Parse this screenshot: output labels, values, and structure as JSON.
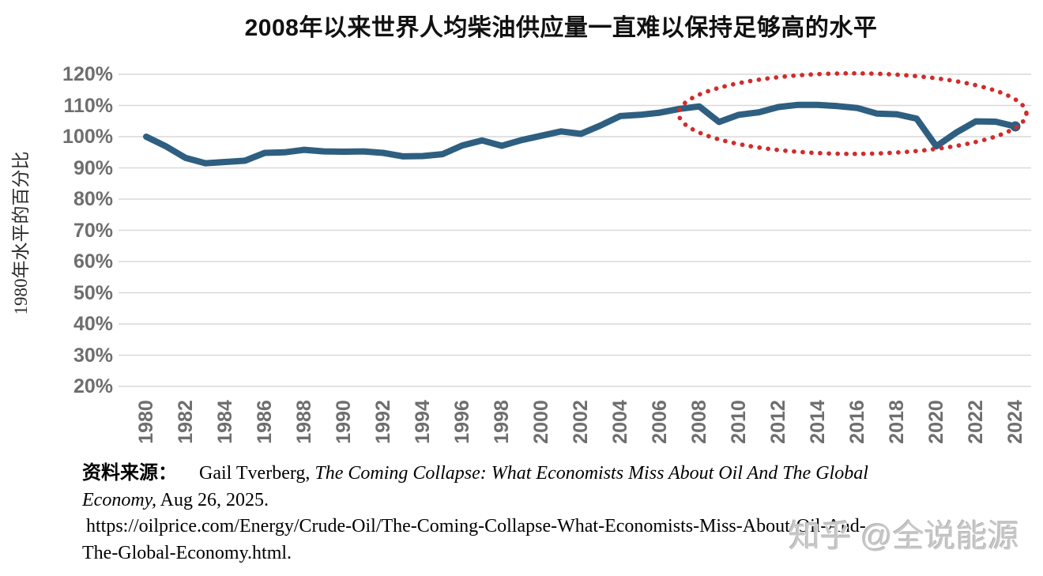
{
  "title": "2008年以来世界人均柴油供应量一直难以保持足够高的水平",
  "watermark": "知乎 @全说能源",
  "source": {
    "label": "资料来源：",
    "credit": "Gail Tverberg, ",
    "work_line1": "The Coming Collapse: What Economists Miss About Oil And The Global",
    "work_line2": "Economy,",
    "date": " Aug 26, 2025.",
    "url_line1": "https://oilprice.com/Energy/Crude-Oil/The-Coming-Collapse-What-Economists-Miss-About-Oil-And-",
    "url_line2": "The-Global-Economy.html."
  },
  "chart_data": {
    "type": "line",
    "title": "2008年以来世界人均柴油供应量一直难以保持足够高的水平",
    "xlabel": "",
    "ylabel": "1980年水平的百分比",
    "x": [
      1980,
      1981,
      1982,
      1983,
      1984,
      1985,
      1986,
      1987,
      1988,
      1989,
      1990,
      1991,
      1992,
      1993,
      1994,
      1995,
      1996,
      1997,
      1998,
      1999,
      2000,
      2001,
      2002,
      2003,
      2004,
      2005,
      2006,
      2007,
      2008,
      2009,
      2010,
      2011,
      2012,
      2013,
      2014,
      2015,
      2016,
      2017,
      2018,
      2019,
      2020,
      2021,
      2022,
      2023,
      2024
    ],
    "values": [
      100.0,
      96.9,
      93.2,
      91.5,
      91.9,
      92.3,
      94.8,
      95.0,
      95.8,
      95.3,
      95.2,
      95.3,
      94.8,
      93.7,
      93.8,
      94.4,
      97.2,
      98.8,
      97.1,
      98.9,
      100.3,
      101.7,
      100.9,
      103.6,
      106.6,
      107.0,
      107.7,
      108.9,
      109.7,
      104.7,
      107.0,
      107.8,
      109.5,
      110.2,
      110.2,
      109.8,
      109.2,
      107.4,
      107.2,
      105.8,
      96.9,
      101.3,
      104.9,
      104.8,
      103.3
    ],
    "unit": "%",
    "ylim": [
      20,
      120
    ],
    "ytick_step": 10,
    "xtick_start": 1980,
    "xtick_end": 2024,
    "xtick_step": 2,
    "grid": "horizontal",
    "legend": "none",
    "line_color": "#2E5F80",
    "grid_color": "#d9d9d9",
    "tick_color": "#6e6e6e",
    "annotation_ellipse": {
      "style": "dotted",
      "color": "#D22B2B",
      "center_year": 2015.76,
      "center_value": 107.4,
      "rx_years": 8.8,
      "ry_pct": 12.9
    }
  }
}
